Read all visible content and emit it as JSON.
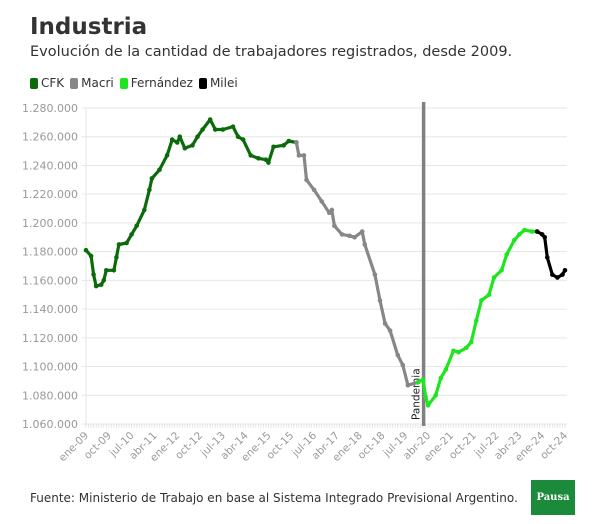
{
  "title": "Industria",
  "subtitle": "Evolución de la cantidad de trabajadores registrados, desde 2009.",
  "footer": "Fuente: Ministerio de Trabajo en base al Sistema Integrado Previsional Argentino.",
  "logo": "Pausa",
  "chart_data": {
    "type": "line",
    "title": "Industria",
    "xlabel": "",
    "ylabel": "",
    "ylim": [
      1060000,
      1280000
    ],
    "yticks": [
      "1.060.000",
      "1.080.000",
      "1.100.000",
      "1.120.000",
      "1.140.000",
      "1.160.000",
      "1.180.000",
      "1.200.000",
      "1.220.000",
      "1.240.000",
      "1.260.000",
      "1.280.000"
    ],
    "xlim": [
      "2009-01",
      "2024-10"
    ],
    "xticks": [
      "ene-09",
      "oct-09",
      "jul-10",
      "abr-11",
      "ene-12",
      "oct-12",
      "jul-13",
      "abr-14",
      "ene-15",
      "oct-15",
      "jul-16",
      "abr-17",
      "ene-18",
      "oct-18",
      "jul-19",
      "abr-20",
      "ene-21",
      "oct-21",
      "jul-22",
      "abr-23",
      "ene-24",
      "oct-24"
    ],
    "grid": "horizontal",
    "legend_position": "top-left",
    "annotation": {
      "label": "Pandemia",
      "x": "2020-03",
      "color": "#808080"
    },
    "series": [
      {
        "name": "CFK",
        "color": "#0b6b0b",
        "points": [
          [
            "2009-01",
            1181000
          ],
          [
            "2009-03",
            1177000
          ],
          [
            "2009-04",
            1164000
          ],
          [
            "2009-05",
            1156000
          ],
          [
            "2009-07",
            1157000
          ],
          [
            "2009-08",
            1160000
          ],
          [
            "2009-09",
            1167000
          ],
          [
            "2009-12",
            1167000
          ],
          [
            "2010-01",
            1176000
          ],
          [
            "2010-02",
            1185000
          ],
          [
            "2010-05",
            1186000
          ],
          [
            "2010-07",
            1192000
          ],
          [
            "2010-09",
            1198000
          ],
          [
            "2010-12",
            1209000
          ],
          [
            "2011-02",
            1223000
          ],
          [
            "2011-03",
            1231000
          ],
          [
            "2011-06",
            1237000
          ],
          [
            "2011-09",
            1247000
          ],
          [
            "2011-11",
            1258000
          ],
          [
            "2012-01",
            1256000
          ],
          [
            "2012-02",
            1260000
          ],
          [
            "2012-04",
            1252000
          ],
          [
            "2012-07",
            1254000
          ],
          [
            "2012-09",
            1260000
          ],
          [
            "2012-11",
            1265000
          ],
          [
            "2013-02",
            1272000
          ],
          [
            "2013-04",
            1265000
          ],
          [
            "2013-07",
            1265000
          ],
          [
            "2013-11",
            1267000
          ],
          [
            "2014-01",
            1260000
          ],
          [
            "2014-03",
            1258000
          ],
          [
            "2014-06",
            1247000
          ],
          [
            "2014-09",
            1245000
          ],
          [
            "2014-12",
            1244000
          ],
          [
            "2015-01",
            1242000
          ],
          [
            "2015-03",
            1253000
          ],
          [
            "2015-07",
            1254000
          ],
          [
            "2015-09",
            1257000
          ],
          [
            "2015-12",
            1256000
          ]
        ]
      },
      {
        "name": "Macri",
        "color": "#878787",
        "points": [
          [
            "2015-12",
            1256000
          ],
          [
            "2016-01",
            1247000
          ],
          [
            "2016-03",
            1247000
          ],
          [
            "2016-04",
            1230000
          ],
          [
            "2016-07",
            1223000
          ],
          [
            "2016-10",
            1215000
          ],
          [
            "2017-01",
            1207000
          ],
          [
            "2017-02",
            1209000
          ],
          [
            "2017-03",
            1198000
          ],
          [
            "2017-06",
            1192000
          ],
          [
            "2017-09",
            1191000
          ],
          [
            "2017-11",
            1190000
          ],
          [
            "2018-02",
            1194000
          ],
          [
            "2018-03",
            1185000
          ],
          [
            "2018-07",
            1164000
          ],
          [
            "2018-09",
            1146000
          ],
          [
            "2018-11",
            1130000
          ],
          [
            "2019-01",
            1125000
          ],
          [
            "2019-04",
            1108000
          ],
          [
            "2019-06",
            1101000
          ],
          [
            "2019-08",
            1087000
          ],
          [
            "2019-12",
            1089000
          ]
        ]
      },
      {
        "name": "Fernández",
        "color": "#1ee61e",
        "points": [
          [
            "2019-12",
            1089000
          ],
          [
            "2020-02",
            1091000
          ],
          [
            "2020-03",
            1079000
          ],
          [
            "2020-04",
            1073000
          ],
          [
            "2020-07",
            1080000
          ],
          [
            "2020-09",
            1092000
          ],
          [
            "2020-11",
            1098000
          ],
          [
            "2021-02",
            1111000
          ],
          [
            "2021-04",
            1110000
          ],
          [
            "2021-07",
            1113000
          ],
          [
            "2021-09",
            1117000
          ],
          [
            "2021-11",
            1132000
          ],
          [
            "2022-01",
            1146000
          ],
          [
            "2022-04",
            1150000
          ],
          [
            "2022-06",
            1162000
          ],
          [
            "2022-09",
            1167000
          ],
          [
            "2022-11",
            1178000
          ],
          [
            "2023-02",
            1188000
          ],
          [
            "2023-04",
            1192000
          ],
          [
            "2023-06",
            1195000
          ],
          [
            "2023-09",
            1194000
          ],
          [
            "2023-11",
            1194000
          ]
        ]
      },
      {
        "name": "Milei",
        "color": "#000000",
        "points": [
          [
            "2023-11",
            1194000
          ],
          [
            "2024-01",
            1192000
          ],
          [
            "2024-02",
            1190000
          ],
          [
            "2024-03",
            1176000
          ],
          [
            "2024-05",
            1164000
          ],
          [
            "2024-07",
            1162000
          ],
          [
            "2024-09",
            1164000
          ],
          [
            "2024-10",
            1167000
          ]
        ]
      }
    ]
  }
}
